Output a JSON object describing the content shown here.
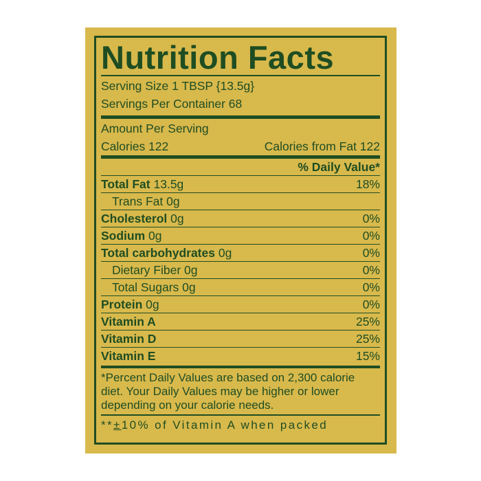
{
  "label": {
    "title": "Nutrition Facts",
    "serving_size": "Serving  Size 1 TBSP {13.5g}",
    "servings_per_container": "Servings Per Container 68",
    "amount_per_serving": "Amount Per Serving",
    "calories": "Calories 122",
    "calories_from_fat": "Calories from Fat 122",
    "daily_value_header": "% Daily Value*",
    "nutrients": [
      {
        "name": "Total Fat",
        "amount": " 13.5g",
        "dv": "18%",
        "bold": true,
        "indent": false
      },
      {
        "name": "Trans Fat 0g",
        "amount": "",
        "dv": "",
        "bold": false,
        "indent": true
      },
      {
        "name": "Cholesterol",
        "amount": " 0g",
        "dv": "0%",
        "bold": true,
        "indent": false
      },
      {
        "name": "Sodium",
        "amount": " 0g",
        "dv": "0%",
        "bold": true,
        "indent": false
      },
      {
        "name": "Total carbohydrates",
        "amount": " 0g",
        "dv": "0%",
        "bold": true,
        "indent": false
      },
      {
        "name": "Dietary Fiber 0g",
        "amount": "",
        "dv": "0%",
        "bold": false,
        "indent": true
      },
      {
        "name": "Total Sugars 0g",
        "amount": "",
        "dv": "0%",
        "bold": false,
        "indent": true
      },
      {
        "name": "Protein",
        "amount": " 0g",
        "dv": "0%",
        "bold": true,
        "indent": false
      },
      {
        "name": "Vitamin A",
        "amount": "",
        "dv": "25%",
        "bold": true,
        "indent": false
      },
      {
        "name": "Vitamin D",
        "amount": "",
        "dv": "25%",
        "bold": true,
        "indent": false
      },
      {
        "name": "Vitamin E",
        "amount": "",
        "dv": "15%",
        "bold": true,
        "indent": false
      }
    ],
    "footnote": "*Percent Daily Values are based on 2,300 calorie diet. Your Daily Values may be higher or lower depending on your calorie needs.",
    "note_prefix": "**",
    "note_pm": "±",
    "note_rest": "10% of Vitamin A when packed"
  },
  "colors": {
    "background": "#d8b94c",
    "ink": "#1f4d22"
  }
}
